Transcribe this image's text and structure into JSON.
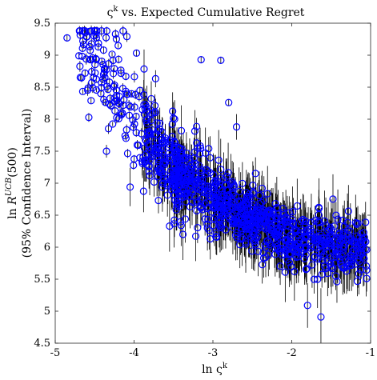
{
  "chart_data": {
    "type": "scatter",
    "title": "ς^k vs. Expected Cumulative Regret",
    "title_parts": {
      "sym": "ς",
      "sup": "k",
      "rest": " vs. Expected Cumulative Regret"
    },
    "xlabel": "ln ς^k",
    "xlabel_parts": {
      "pre": "ln ς",
      "sup": "k"
    },
    "ylabel_line1": "ln R^UCB(500)",
    "ylabel_parts": {
      "pre": "ln ",
      "R": "R",
      "sup": "UCB",
      "post": "(500)"
    },
    "ylabel_line2": "(95% Confidence Interval)",
    "xlim": [
      -5,
      -1
    ],
    "ylim": [
      4.5,
      9.5
    ],
    "xticks": [
      "-5",
      "-4",
      "-3",
      "-2",
      "-1"
    ],
    "yticks": [
      "4.5",
      "5",
      "5.5",
      "6",
      "6.5",
      "7",
      "7.5",
      "8",
      "8.5",
      "9",
      "9.5"
    ],
    "grid": false,
    "marker": "open circle",
    "marker_color": "#0000ff",
    "errorbar_color": "#000000",
    "point_count": 1100,
    "trend": [
      [
        -4.85,
        9.25
      ],
      [
        -4.5,
        9.0
      ],
      [
        -4.2,
        8.55
      ],
      [
        -4.0,
        8.1
      ],
      [
        -3.8,
        7.6
      ],
      [
        -3.5,
        7.25
      ],
      [
        -3.2,
        6.95
      ],
      [
        -3.0,
        6.75
      ],
      [
        -2.8,
        6.6
      ],
      [
        -2.5,
        6.45
      ],
      [
        -2.2,
        6.3
      ],
      [
        -2.0,
        6.2
      ],
      [
        -1.6,
        6.1
      ],
      [
        -1.3,
        6.0
      ],
      [
        -1.05,
        5.95
      ]
    ],
    "notable_points": [
      {
        "x": -4.85,
        "y": 9.27,
        "ci": 0.05
      },
      {
        "x": -4.62,
        "y": 9.35,
        "ci": 0.05
      },
      {
        "x": -4.35,
        "y": 7.5,
        "ci": 0.1
      },
      {
        "x": -4.05,
        "y": 6.94,
        "ci": 0.3
      },
      {
        "x": -3.55,
        "y": 6.33,
        "ci": 0.4
      },
      {
        "x": -3.38,
        "y": 6.2,
        "ci": 0.4
      },
      {
        "x": -2.8,
        "y": 8.26,
        "ci": 0.05
      },
      {
        "x": -2.7,
        "y": 7.88,
        "ci": 0.2
      },
      {
        "x": -2.9,
        "y": 8.92,
        "ci": 0.05
      },
      {
        "x": -3.15,
        "y": 8.93,
        "ci": 0.05
      },
      {
        "x": -1.8,
        "y": 5.09,
        "ci": 0.35
      },
      {
        "x": -1.63,
        "y": 4.91,
        "ci": 0.45
      },
      {
        "x": -1.05,
        "y": 5.96,
        "ci": 0.25
      },
      {
        "x": -1.3,
        "y": 5.7,
        "ci": 0.35
      }
    ]
  }
}
